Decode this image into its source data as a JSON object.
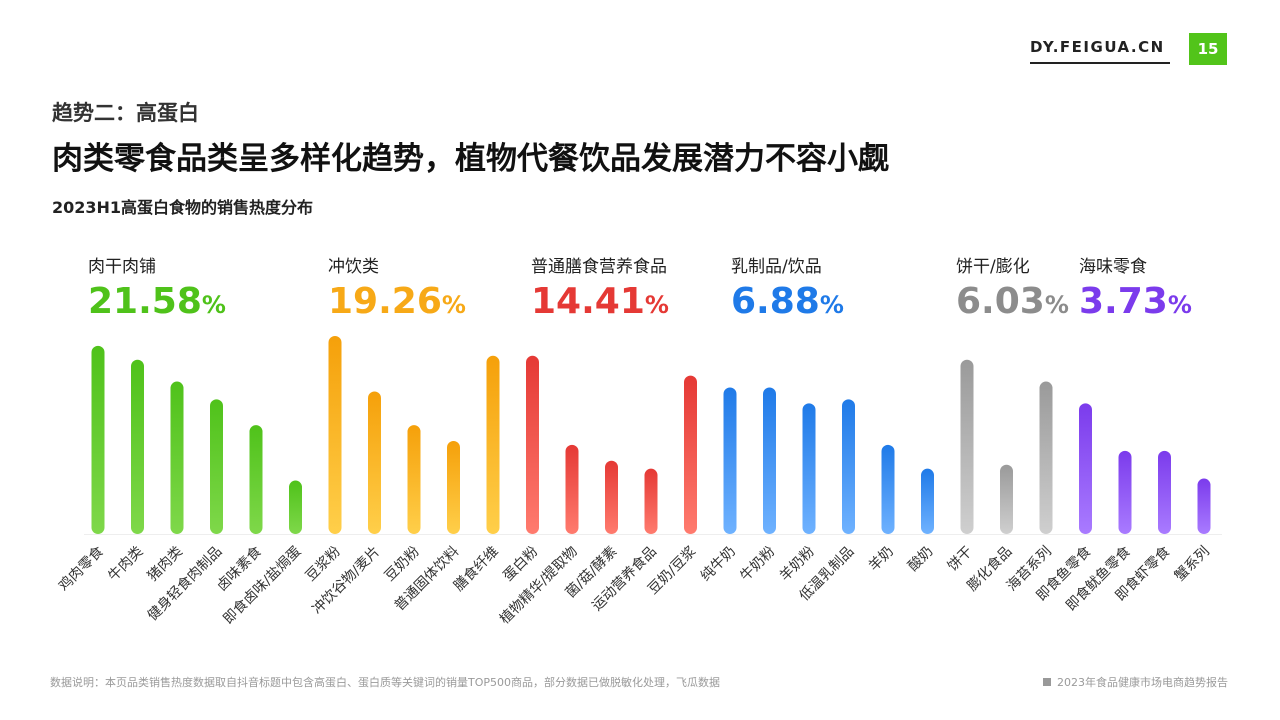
{
  "header": {
    "brand": "DY.FEIGUA.CN",
    "page_number": "15"
  },
  "eyebrow": "趋势二：高蛋白",
  "headline": "肉类零食品类呈多样化趋势，植物代餐饮品发展潜力不容小觑",
  "subtitle": "2023H1高蛋白食物的销售热度分布",
  "groups": [
    {
      "label": "肉干肉铺",
      "value": "21.58",
      "unit": "%",
      "color": "#52c41a"
    },
    {
      "label": "冲饮类",
      "value": "19.26",
      "unit": "%",
      "color": "#faad14"
    },
    {
      "label": "普通膳食营养食品",
      "value": "14.41",
      "unit": "%",
      "color": "#f5222d"
    },
    {
      "label": "乳制品/饮品",
      "value": "6.88",
      "unit": "%",
      "color": "#1677ff"
    },
    {
      "label": "饼干/膨化",
      "value": "6.03",
      "unit": "%",
      "color": "#8c8c8c"
    },
    {
      "label": "海味零食",
      "value": "3.73",
      "unit": "%",
      "color": "#7c3aed"
    }
  ],
  "chart_data": {
    "type": "bar",
    "title": "2023H1高蛋白食物的销售热度分布",
    "xlabel": "",
    "ylabel": "",
    "ylim": [
      0,
      100
    ],
    "categories": [
      "鸡肉零食",
      "牛肉类",
      "猪肉类",
      "健身轻食肉制品",
      "卤味素食",
      "即食卤味/盐焗蛋",
      "豆浆粉",
      "冲饮谷物/麦片",
      "豆奶粉",
      "普通固体饮料",
      "膳食纤维",
      "蛋白粉",
      "植物精华/提取物",
      "菌/菇/酵素",
      "运动营养食品",
      "豆奶/豆浆",
      "纯牛奶",
      "牛奶粉",
      "羊奶粉",
      "低温乳制品",
      "羊奶",
      "酸奶",
      "饼干",
      "膨化食品",
      "海苔系列",
      "即食鱼零食",
      "即食鱿鱼零食",
      "即食虾零食",
      "蟹系列"
    ],
    "values": [
      95,
      88,
      77,
      68,
      55,
      27,
      100,
      72,
      55,
      47,
      90,
      90,
      45,
      37,
      33,
      80,
      74,
      74,
      66,
      68,
      45,
      33,
      88,
      35,
      77,
      66,
      42,
      42,
      28
    ],
    "groups": [
      "肉干肉铺",
      "肉干肉铺",
      "肉干肉铺",
      "肉干肉铺",
      "肉干肉铺",
      "肉干肉铺",
      "冲饮类",
      "冲饮类",
      "冲饮类",
      "冲饮类",
      "冲饮类",
      "普通膳食营养食品",
      "普通膳食营养食品",
      "普通膳食营养食品",
      "普通膳食营养食品",
      "普通膳食营养食品",
      "乳制品/饮品",
      "乳制品/饮品",
      "乳制品/饮品",
      "乳制品/饮品",
      "乳制品/饮品",
      "乳制品/饮品",
      "饼干/膨化",
      "饼干/膨化",
      "饼干/膨化",
      "海味零食",
      "海味零食",
      "海味零食",
      "海味零食"
    ],
    "group_colors": {
      "肉干肉铺": [
        "#4fc21a",
        "#7fd84a"
      ],
      "冲饮类": [
        "#f5a00a",
        "#ffcf4a"
      ],
      "普通膳食营养食品": [
        "#e53935",
        "#ff7b6e"
      ],
      "乳制品/饮品": [
        "#1f7ae8",
        "#6fb2ff"
      ],
      "饼干/膨化": [
        "#9a9a9a",
        "#cfcfcf"
      ],
      "海味零食": [
        "#7b3bec",
        "#a97bff"
      ]
    }
  },
  "footer": {
    "note": "数据说明：本页品类销售热度数据取自抖音标题中包含高蛋白、蛋白质等关键词的销量TOP500商品，部分数据已做脱敏化处理，飞瓜数据",
    "report": "2023年食品健康市场电商趋势报告"
  }
}
